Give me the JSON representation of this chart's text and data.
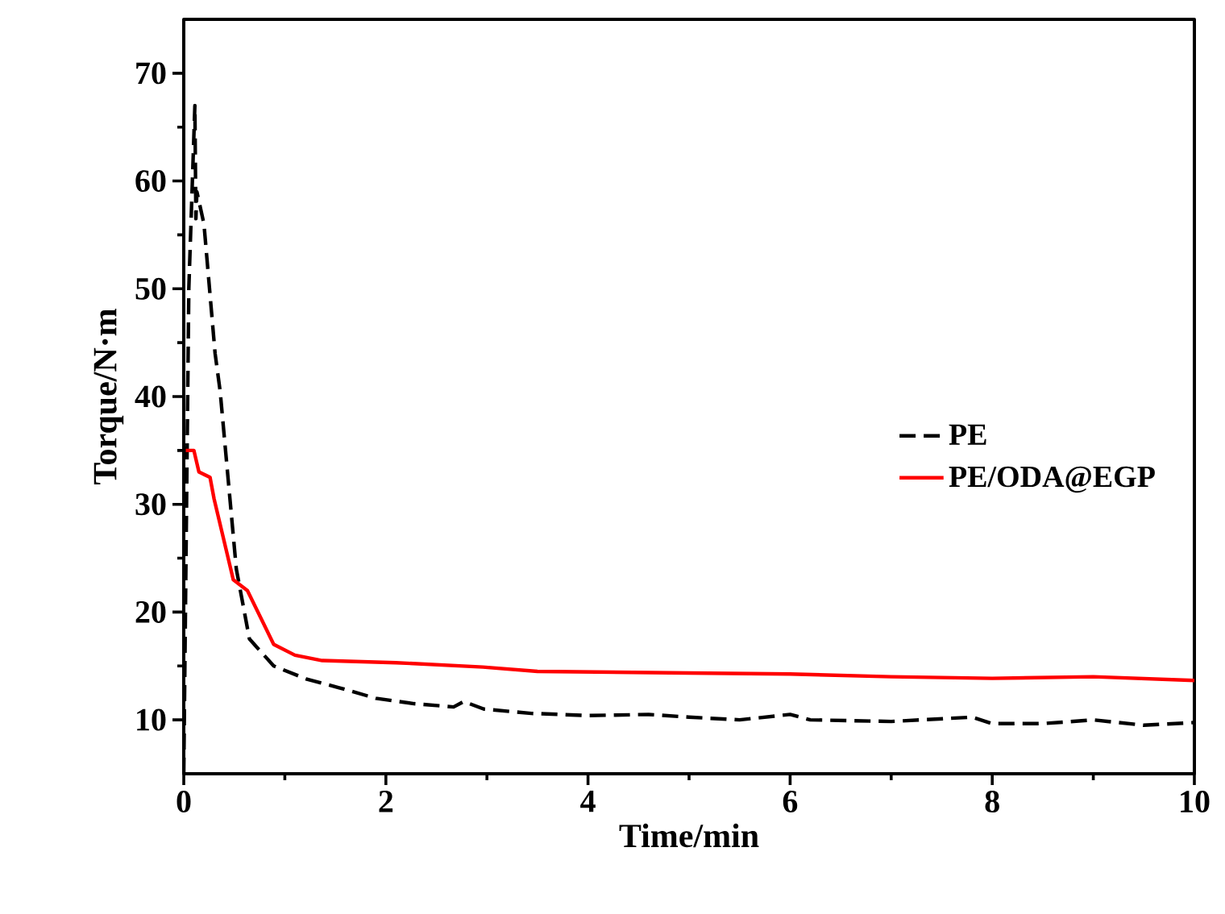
{
  "chart_data": {
    "type": "line",
    "xlabel": "Time/min",
    "ylabel": "Torque/N·m",
    "xlim": [
      0,
      10
    ],
    "ylim": [
      5,
      75
    ],
    "xticks": [
      0,
      2,
      4,
      6,
      8,
      10
    ],
    "yticks": [
      10,
      20,
      30,
      40,
      50,
      60,
      70
    ],
    "grid": false,
    "legend": "right",
    "marker": "none",
    "series": [
      {
        "name": "PE",
        "color": "#000000",
        "line_style": "dashed",
        "x": [
          0,
          0.05,
          0.11,
          0.12,
          0.13,
          0.2,
          0.31,
          0.36,
          0.52,
          0.65,
          0.89,
          1.21,
          1.53,
          1.9,
          2.28,
          2.67,
          2.77,
          2.97,
          3.44,
          4,
          4.6,
          5,
          5.5,
          6,
          6.2,
          7,
          7.8,
          8,
          8.5,
          9,
          9.5,
          10
        ],
        "values": [
          5,
          50,
          67,
          56.5,
          59,
          56,
          44,
          40.5,
          24,
          17.5,
          15,
          13.8,
          13,
          12,
          11.5,
          11.2,
          11.7,
          11,
          10.6,
          10.4,
          10.5,
          10.25,
          10,
          10.5,
          10,
          9.85,
          10.25,
          9.65,
          9.65,
          10,
          9.5,
          9.75
        ]
      },
      {
        "name": "PE/ODA@EGP",
        "color": "#ff0000",
        "line_style": "solid",
        "x": [
          0.02,
          0.1,
          0.15,
          0.26,
          0.3,
          0.49,
          0.63,
          0.89,
          1.1,
          1.37,
          2.1,
          2.96,
          3.5,
          5,
          6,
          7,
          8,
          9,
          10
        ],
        "values": [
          35,
          35,
          33,
          32.5,
          30.5,
          23,
          22,
          17,
          16,
          15.5,
          15.3,
          14.9,
          14.5,
          14.35,
          14.25,
          14,
          13.85,
          14,
          13.65
        ]
      }
    ]
  }
}
